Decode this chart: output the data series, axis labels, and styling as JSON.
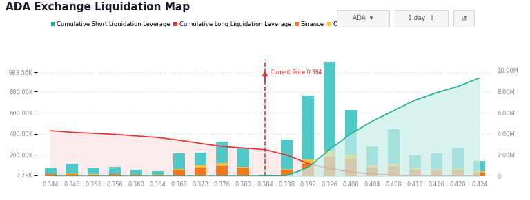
{
  "title": "ADA Exchange Liquidation Map",
  "title_fontsize": 11,
  "background_color": "#ffffff",
  "current_price": 0.384,
  "current_price_label": "Current Price:0.384",
  "x_ticks": [
    0.344,
    0.348,
    0.352,
    0.356,
    0.36,
    0.364,
    0.368,
    0.372,
    0.376,
    0.38,
    0.384,
    0.388,
    0.392,
    0.396,
    0.4,
    0.404,
    0.408,
    0.412,
    0.416,
    0.42,
    0.424
  ],
  "bar_width": 0.0022,
  "ylim_left": [
    0,
    1100000
  ],
  "ylim_right": [
    0,
    11000000
  ],
  "left_yticks": [
    7290,
    200000,
    400000,
    600000,
    800000,
    983560
  ],
  "left_yticklabels": [
    "7.29K",
    "200.00K",
    "400.00K",
    "600.00K",
    "800.00K",
    "983.56K"
  ],
  "right_yticks": [
    0,
    2000000,
    4000000,
    6000000,
    8000000,
    10000000
  ],
  "right_yticklabels": [
    "0",
    "2.00M",
    "4.00M",
    "6.00M",
    "8.00M",
    "10.00M"
  ],
  "colors": {
    "binance": "#f07820",
    "okx": "#f0c040",
    "bybit": "#50c8c8",
    "cum_short_line": "#20b090",
    "cum_short_fill": "#c8ede8",
    "cum_long_line": "#e83030",
    "cum_long_fill": "#fce8e8",
    "dashed_line": "#e83030",
    "dot_line": "#d8d8d8"
  },
  "binance_bars": [
    18000,
    20000,
    15000,
    18000,
    12000,
    10000,
    55000,
    80000,
    100000,
    70000,
    5000,
    50000,
    120000,
    180000,
    160000,
    80000,
    90000,
    60000,
    50000,
    55000,
    35000
  ],
  "okx_bars": [
    4000,
    5000,
    4000,
    5000,
    3000,
    3000,
    12000,
    22000,
    25000,
    18000,
    2000,
    15000,
    40000,
    55000,
    45000,
    22000,
    25000,
    18000,
    14000,
    15000,
    10000
  ],
  "bybit_bars": [
    55000,
    90000,
    60000,
    65000,
    45000,
    35000,
    150000,
    120000,
    200000,
    170000,
    8000,
    280000,
    600000,
    850000,
    420000,
    180000,
    330000,
    120000,
    150000,
    200000,
    100000
  ],
  "cum_long_vals": [
    430000,
    415000,
    405000,
    395000,
    380000,
    365000,
    340000,
    310000,
    280000,
    265000,
    250000,
    200000,
    120000,
    70000,
    40000,
    20000,
    10000,
    5000,
    3000,
    2000,
    1000
  ],
  "cum_short_vals": [
    0,
    0,
    0,
    0,
    0,
    0,
    0,
    0,
    0,
    0,
    0,
    50000,
    800000,
    2500000,
    4000000,
    5200000,
    6200000,
    7200000,
    7900000,
    8500000,
    9300000
  ]
}
